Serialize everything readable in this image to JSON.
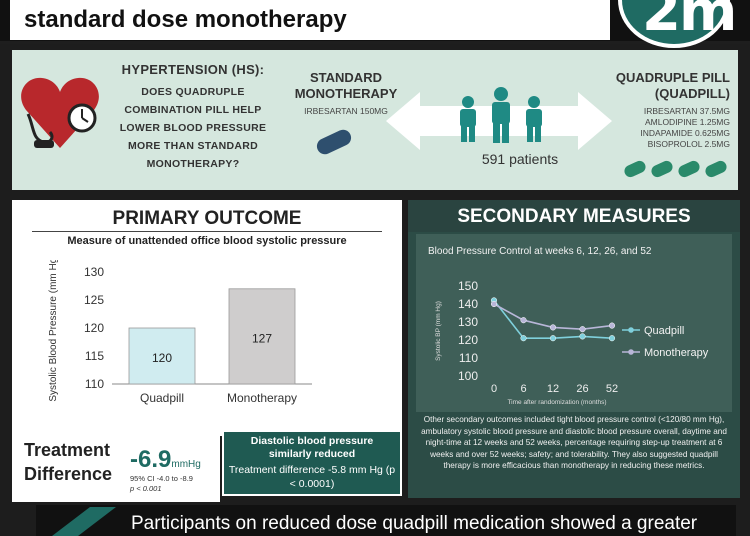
{
  "header": {
    "title": "standard dose monotherapy",
    "logo_text": "2m"
  },
  "top": {
    "hs_title": "HYPERTENSION (HS):",
    "hs_question": [
      "DOES QUADRUPLE",
      "COMBINATION PILL HELP",
      "LOWER BLOOD PRESSURE",
      "MORE THAN STANDARD",
      "MONOTHERAPY?"
    ],
    "standard_title": "STANDARD MONOTHERAPY",
    "standard_dose": "IRBESARTAN 150MG",
    "quad_title": "QUADRUPLE PILL (QUADPILL)",
    "quad_doses": [
      "IRBESARTAN 37.5MG",
      "AMLODIPINE 1.25MG",
      "INDAPAMIDE 0.625MG",
      "BISOPROLOL 2.5MG"
    ],
    "patients": "591 patients",
    "colors": {
      "teal": "#1f6b63",
      "heart": "#b8282c",
      "pill_dark": "#2e4f6e",
      "pill_green": "#2a8a6a"
    }
  },
  "primary": {
    "title": "PRIMARY OUTCOME",
    "subtitle": "Measure of unattended office blood systolic pressure",
    "chart_data": {
      "type": "bar",
      "categories": [
        "Quadpill",
        "Monotherapy"
      ],
      "values": [
        120,
        127
      ],
      "value_labels": [
        "120",
        "127"
      ],
      "ylabel": "Systolic Blood Pressure (mm Hg)",
      "ylim": [
        110,
        130
      ],
      "yticks": [
        "110",
        "115",
        "120",
        "125",
        "130"
      ],
      "colors": [
        "#d0ecf0",
        "#cfcdcd"
      ]
    }
  },
  "treatment": {
    "title": "Treatment Difference",
    "value": "-6.9",
    "unit": "mmHg",
    "ci": "95% CI -4.0 to -8.9",
    "p": "p < 0.001"
  },
  "diastolic": {
    "bold": "Diastolic blood pressure similarly reduced",
    "text": "Treatment difference -5.8 mm Hg (p < 0.0001)"
  },
  "secondary": {
    "title": "SECONDARY MEASURES",
    "notes": "Other secondary outcomes included tight blood pressure control (<120/80 mm Hg), ambulatory systolic blood pressure and diastolic blood pressure overall, daytime and night-time at 12 weeks and 52 weeks, percentage requiring step-up treatment at 6 weeks and over 52 weeks; safety; and tolerability. They also suggested quadpill therapy is more efficacious than monotherapy in reducing these metrics.",
    "chart_data": {
      "type": "line",
      "title": "Blood Pressure Control at weeks 6, 12, 26, and 52",
      "x": [
        "0",
        "6",
        "12",
        "26",
        "52"
      ],
      "xlabel": "Time after randomization (months)",
      "ylabel": "Systolic BP (mm Hg)",
      "ylim": [
        100,
        150
      ],
      "yticks": [
        "100",
        "110",
        "120",
        "130",
        "140",
        "150"
      ],
      "series": [
        {
          "name": "Quadpill",
          "values": [
            142,
            121,
            121,
            122,
            121
          ],
          "color": "#7fd0dc"
        },
        {
          "name": "Monotherapy",
          "values": [
            140,
            131,
            127,
            126,
            128
          ],
          "color": "#b8b6d8"
        }
      ],
      "legend": "right"
    }
  },
  "footer": {
    "text": "Participants on reduced dose quadpill medication showed a greater"
  }
}
